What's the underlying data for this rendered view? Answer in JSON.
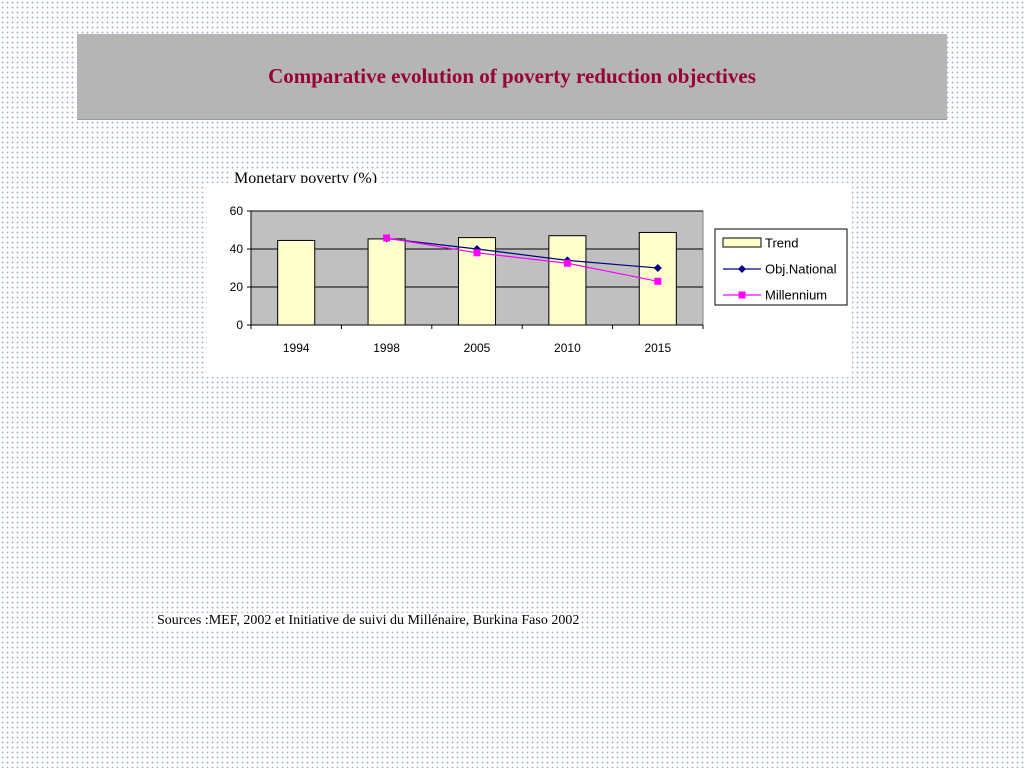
{
  "slide": {
    "title": "Comparative evolution of poverty reduction objectives",
    "source": "Sources :MEF, 2002 et  Initiative de suivi du Millénaire, Burkina Faso 2002"
  },
  "chart_data": {
    "type": "bar",
    "title": "Monetary poverty (%)",
    "categories": [
      "1994",
      "1998",
      "2005",
      "2010",
      "2015"
    ],
    "ylim": [
      0,
      60
    ],
    "yticks": [
      0,
      20,
      40,
      60
    ],
    "grid": true,
    "legend_position": "right",
    "series": [
      {
        "name": "Trend",
        "type": "bar",
        "color": "#ffffcc",
        "values": [
          44.5,
          45.3,
          46.0,
          47.0,
          48.7
        ]
      },
      {
        "name": "Obj.National",
        "type": "line",
        "marker": "diamond",
        "color": "#000080",
        "values": [
          null,
          45.5,
          40.0,
          34.0,
          30.0
        ]
      },
      {
        "name": "Millennium",
        "type": "line",
        "marker": "square",
        "color": "#ff00ff",
        "values": [
          null,
          45.8,
          38.0,
          32.5,
          23.0
        ]
      }
    ]
  }
}
